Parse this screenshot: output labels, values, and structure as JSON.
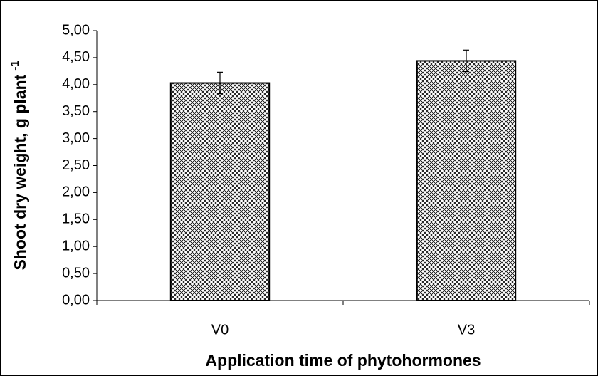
{
  "chart_data": {
    "type": "bar",
    "xlabel": "Application time of phytohormones",
    "ylabel": "Shoot dry weight, g plant",
    "ylabel_superscript": "-1",
    "categories": [
      "V0",
      "V3"
    ],
    "values": [
      4.03,
      4.44
    ],
    "errors": [
      0.2,
      0.2
    ],
    "color": "#000000",
    "pattern": "crosshatch",
    "ylim": [
      0,
      5
    ],
    "yticks": [
      {
        "value": 0,
        "label": "0,00"
      },
      {
        "value": 0.5,
        "label": "0,50"
      },
      {
        "value": 1,
        "label": "1,00"
      },
      {
        "value": 1.5,
        "label": "1,50"
      },
      {
        "value": 2,
        "label": "2,00"
      },
      {
        "value": 2.5,
        "label": "2,50"
      },
      {
        "value": 3,
        "label": "3,00"
      },
      {
        "value": 3.5,
        "label": "3,50"
      },
      {
        "value": 4,
        "label": "4,00"
      },
      {
        "value": 4.5,
        "label": "4,50"
      },
      {
        "value": 5,
        "label": "5,00"
      }
    ],
    "grid": false
  }
}
